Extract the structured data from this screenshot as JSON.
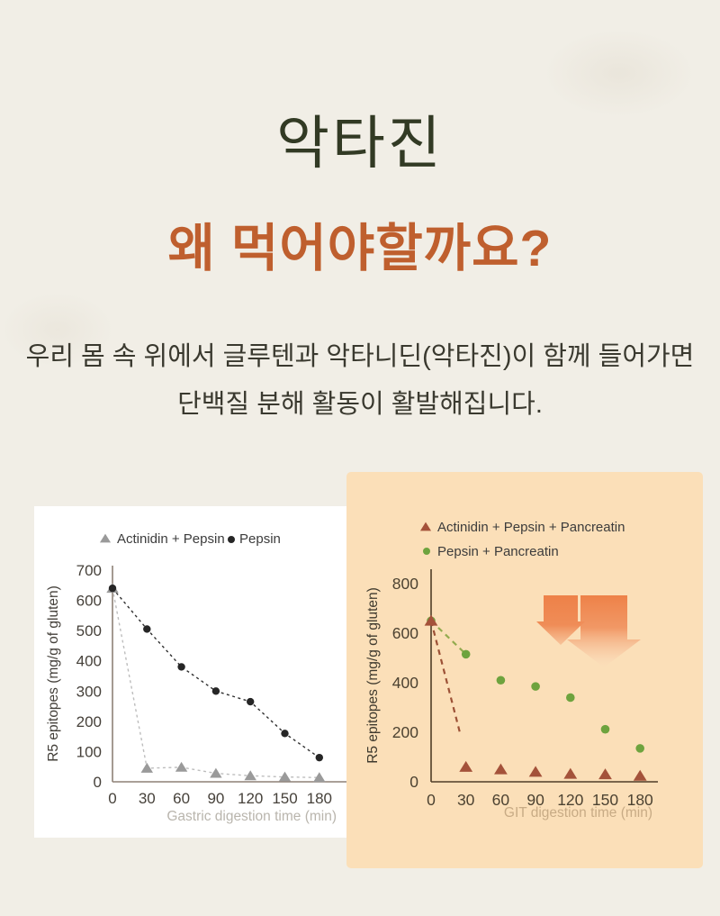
{
  "colors": {
    "page_bg": "#f1eee6",
    "title": "#323a24",
    "subtitle": "#bf5f2e",
    "body": "#3a392f",
    "left_card_bg": "#ffffff",
    "right_card_bg": "#fbdfb8",
    "arrow_orange": "#ee8148"
  },
  "header": {
    "title": "악타진",
    "subtitle": "왜 먹어야할까요?",
    "body_line1": "우리 몸 속 위에서 글루텐과 악타니딘(악타진)이 함께 들어가면",
    "body_line2": "단백질 분해 활동이 활발해집니다."
  },
  "chart_data": [
    {
      "id": "gastric",
      "type": "line",
      "title": "",
      "x": [
        0,
        30,
        60,
        90,
        120,
        150,
        180
      ],
      "xlabel": "Gastric digestion time (min)",
      "ylabel": "R5 epitopes (mg/g of gluten)",
      "yticks": [
        0,
        100,
        200,
        300,
        400,
        500,
        600,
        700
      ],
      "ylim": [
        0,
        700
      ],
      "xlim": [
        0,
        180
      ],
      "grid": false,
      "legend_position": "top-inline",
      "series": [
        {
          "name": "Actinidin + Pepsin",
          "marker": "triangle",
          "marker_color": "#9a9a9a",
          "line_color": "#bdbdbd",
          "line": "full",
          "values": [
            640,
            45,
            48,
            28,
            20,
            16,
            14
          ]
        },
        {
          "name": "Pepsin",
          "marker": "circle",
          "marker_color": "#262626",
          "line_color": "#2f2f2f",
          "line": "full",
          "values": [
            640,
            505,
            380,
            300,
            265,
            160,
            80
          ]
        }
      ],
      "axis_color": "#8e8076",
      "tick_color": "#46413a",
      "xlabel_color": "#b9b5ad",
      "ylabel_color": "#44403a",
      "legend_text_color": "#3c3c3c"
    },
    {
      "id": "git",
      "type": "scatter",
      "title": "",
      "x": [
        0,
        30,
        60,
        90,
        120,
        150,
        180
      ],
      "xlabel": "GIT digestion time (min)",
      "ylabel": "R5 epitopes (mg/g of gluten)",
      "yticks": [
        0,
        200,
        400,
        600,
        800
      ],
      "ylim": [
        0,
        800
      ],
      "xlim": [
        0,
        180
      ],
      "grid": false,
      "legend_position": "top-stacked",
      "series": [
        {
          "name": "Actinidin + Pepsin + Pancreatin",
          "marker": "triangle",
          "marker_color": "#a4523a",
          "line_color": "#9c5136",
          "line": "leadin",
          "line_end_x": 25,
          "line_end_y": 195,
          "values": [
            650,
            60,
            50,
            40,
            32,
            30,
            24
          ]
        },
        {
          "name": "Pepsin + Pancreatin",
          "marker": "circle",
          "marker_color": "#6ea33e",
          "line_color": "#93ab4f",
          "line": "leadin",
          "values": [
            650,
            515,
            410,
            385,
            340,
            212,
            135
          ]
        }
      ],
      "axis_color": "#4f3d27",
      "tick_color": "#4c4231",
      "xlabel_color": "#c8ab85",
      "ylabel_color": "#3f3a2e",
      "legend_text_color": "#3c3c3c",
      "annotations": [
        "down-arrow-icon",
        "down-arrow-icon"
      ]
    }
  ]
}
